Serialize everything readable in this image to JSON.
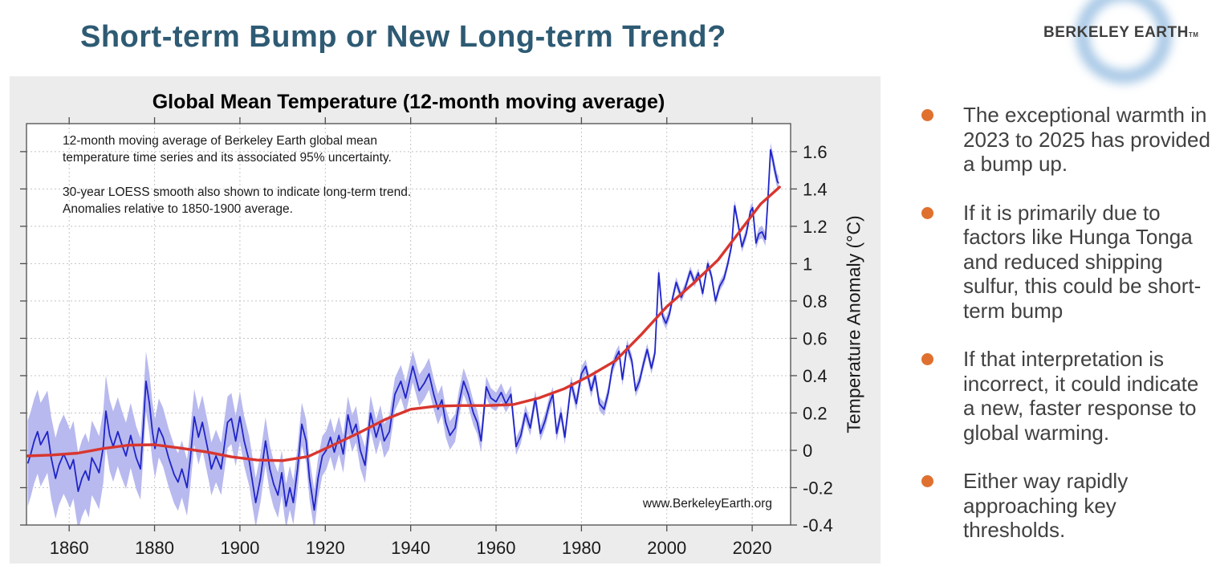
{
  "slide": {
    "title": "Short-term Bump or New Long-term Trend?",
    "title_color": "#2e5a73",
    "background": "#ffffff"
  },
  "logo": {
    "text": "BERKELEY EARTH",
    "tm": "TM",
    "ring_color": "#92bae0",
    "text_color": "#3f3f3f"
  },
  "bullets": {
    "marker_color": "#e0702f",
    "text_color": "#414141",
    "items": [
      "The exceptional warmth in 2023 to 2025 has provided a bump up.",
      "If it is primarily due to factors like Hunga Tonga and reduced shipping sulfur, this could be short-term bump",
      "If that interpretation is incorrect, it could indicate a new, faster response to global warming.",
      "Either way rapidly approaching key thresholds."
    ]
  },
  "chart_data": {
    "type": "line",
    "title": "Global Mean Temperature (12-month moving average)",
    "annotation_1": "12-month moving average of Berkeley Earth global mean\ntemperature time series and its associated 95% uncertainty.",
    "annotation_2": "30-year LOESS smooth also shown to indicate long-term trend.\nAnomalies relative to 1850-1900 average.",
    "watermark": "www.BerkeleyEarth.org",
    "xlabel": "",
    "ylabel": "Temperature Anomaly  (°C)",
    "xlim": [
      1850,
      2029
    ],
    "ylim": [
      -0.4,
      1.75
    ],
    "grid": "dashed, both axes",
    "legend_position": "none",
    "x_ticks": [
      1860,
      1880,
      1900,
      1920,
      1940,
      1960,
      1980,
      2000,
      2020
    ],
    "y_ticks": [
      {
        "v": 1.6,
        "label": "1.6"
      },
      {
        "v": 1.4,
        "label": "1.4"
      },
      {
        "v": 1.2,
        "label": "1.2"
      },
      {
        "v": 1.0,
        "label": "1"
      },
      {
        "v": 0.8,
        "label": "0.8"
      },
      {
        "v": 0.6,
        "label": "0.6"
      },
      {
        "v": 0.4,
        "label": "0.4"
      },
      {
        "v": 0.2,
        "label": "0.2"
      },
      {
        "v": 0.0,
        "label": "0"
      },
      {
        "v": -0.2,
        "label": "-0.2"
      },
      {
        "v": -0.4,
        "label": "-0.4"
      }
    ],
    "colors": {
      "card_background": "#ececec",
      "plot_background": "#ffffff",
      "axis": "#4d4d4d",
      "grid": "#c4c4c4",
      "moving_average": "#1f24c8",
      "uncertainty_band": "#b8b9ee",
      "loess_trend": "#d8362f",
      "tick_text": "#1a1a1a"
    },
    "series": [
      {
        "name": "12-month moving average (Berkeley Earth global mean)",
        "color": "#1f24c8",
        "points": [
          [
            1850.3,
            -0.07
          ],
          [
            1851,
            -0.02
          ],
          [
            1851.8,
            0.05
          ],
          [
            1852.6,
            0.1
          ],
          [
            1853.3,
            0.03
          ],
          [
            1854,
            0.06
          ],
          [
            1854.9,
            0.1
          ],
          [
            1855.8,
            -0.04
          ],
          [
            1856.8,
            -0.15
          ],
          [
            1857.6,
            -0.08
          ],
          [
            1858.7,
            -0.02
          ],
          [
            1859.5,
            -0.06
          ],
          [
            1860.2,
            -0.1
          ],
          [
            1861,
            -0.05
          ],
          [
            1862.1,
            -0.22
          ],
          [
            1863,
            -0.15
          ],
          [
            1863.8,
            -0.11
          ],
          [
            1864.6,
            -0.16
          ],
          [
            1865.3,
            -0.04
          ],
          [
            1866.2,
            -0.08
          ],
          [
            1867,
            -0.12
          ],
          [
            1868,
            0.02
          ],
          [
            1868.6,
            0.21
          ],
          [
            1869.5,
            0.08
          ],
          [
            1870.3,
            0.02
          ],
          [
            1871.4,
            0.1
          ],
          [
            1872.2,
            0.04
          ],
          [
            1873.3,
            -0.03
          ],
          [
            1874.4,
            0.08
          ],
          [
            1875.7,
            -0.04
          ],
          [
            1876.7,
            -0.1
          ],
          [
            1877.3,
            0.1
          ],
          [
            1878,
            0.37
          ],
          [
            1878.8,
            0.25
          ],
          [
            1879.5,
            0.1
          ],
          [
            1880.1,
            0.01
          ],
          [
            1881,
            0.12
          ],
          [
            1882,
            0.07
          ],
          [
            1883.3,
            -0.04
          ],
          [
            1884.6,
            -0.13
          ],
          [
            1885.5,
            -0.17
          ],
          [
            1886.4,
            -0.1
          ],
          [
            1887.6,
            -0.2
          ],
          [
            1888.4,
            -0.04
          ],
          [
            1889.3,
            0.18
          ],
          [
            1890.3,
            0.07
          ],
          [
            1891.2,
            0.15
          ],
          [
            1892.8,
            -0.03
          ],
          [
            1893.3,
            -0.1
          ],
          [
            1894.4,
            -0.03
          ],
          [
            1895.6,
            -0.1
          ],
          [
            1897.1,
            0.15
          ],
          [
            1898,
            0.17
          ],
          [
            1899,
            0.05
          ],
          [
            1900,
            0.18
          ],
          [
            1901,
            0.05
          ],
          [
            1902.2,
            -0.06
          ],
          [
            1903.7,
            -0.28
          ],
          [
            1904.8,
            -0.15
          ],
          [
            1906,
            0.05
          ],
          [
            1907,
            -0.1
          ],
          [
            1907.9,
            -0.18
          ],
          [
            1908.9,
            -0.24
          ],
          [
            1909.8,
            -0.12
          ],
          [
            1910.8,
            -0.3
          ],
          [
            1911.7,
            -0.2
          ],
          [
            1912.5,
            -0.28
          ],
          [
            1913.5,
            -0.1
          ],
          [
            1914.5,
            0.14
          ],
          [
            1915.5,
            0.05
          ],
          [
            1916.3,
            -0.15
          ],
          [
            1917.4,
            -0.32
          ],
          [
            1918.3,
            -0.15
          ],
          [
            1919.3,
            -0.03
          ],
          [
            1920.2,
            0
          ],
          [
            1921.2,
            0.07
          ],
          [
            1922.1,
            -0.01
          ],
          [
            1923.2,
            0.08
          ],
          [
            1924.2,
            -0.02
          ],
          [
            1925.3,
            0.19
          ],
          [
            1926.3,
            0.09
          ],
          [
            1927.2,
            0.14
          ],
          [
            1928.2,
            0
          ],
          [
            1929.3,
            -0.08
          ],
          [
            1930.6,
            0.2
          ],
          [
            1931.9,
            0.07
          ],
          [
            1932.9,
            0.15
          ],
          [
            1933.8,
            0.05
          ],
          [
            1935,
            0.1
          ],
          [
            1936.3,
            0.3
          ],
          [
            1937.7,
            0.37
          ],
          [
            1938.8,
            0.28
          ],
          [
            1940.5,
            0.45
          ],
          [
            1942,
            0.32
          ],
          [
            1943.2,
            0.36
          ],
          [
            1944.3,
            0.41
          ],
          [
            1945.4,
            0.3
          ],
          [
            1946.4,
            0.22
          ],
          [
            1947.3,
            0.27
          ],
          [
            1948.2,
            0.15
          ],
          [
            1949.2,
            0.08
          ],
          [
            1950.4,
            0.12
          ],
          [
            1951.3,
            0.25
          ],
          [
            1952.4,
            0.37
          ],
          [
            1953.5,
            0.3
          ],
          [
            1954.7,
            0.2
          ],
          [
            1955.6,
            0.15
          ],
          [
            1956.5,
            0.05
          ],
          [
            1957.7,
            0.34
          ],
          [
            1958.8,
            0.28
          ],
          [
            1960,
            0.26
          ],
          [
            1961.2,
            0.31
          ],
          [
            1962.3,
            0.25
          ],
          [
            1963.5,
            0.3
          ],
          [
            1964.7,
            0.02
          ],
          [
            1965.8,
            0.08
          ],
          [
            1966.9,
            0.2
          ],
          [
            1968,
            0.12
          ],
          [
            1969.2,
            0.28
          ],
          [
            1970.4,
            0.09
          ],
          [
            1971.5,
            0.16
          ],
          [
            1972.5,
            0.25
          ],
          [
            1973.3,
            0.3
          ],
          [
            1974.2,
            0.09
          ],
          [
            1975.2,
            0.2
          ],
          [
            1976.1,
            0.07
          ],
          [
            1977.6,
            0.36
          ],
          [
            1978.8,
            0.25
          ],
          [
            1980,
            0.41
          ],
          [
            1981,
            0.45
          ],
          [
            1982.3,
            0.32
          ],
          [
            1983.2,
            0.4
          ],
          [
            1984.2,
            0.25
          ],
          [
            1985.3,
            0.22
          ],
          [
            1986.3,
            0.31
          ],
          [
            1987.2,
            0.44
          ],
          [
            1988.1,
            0.5
          ],
          [
            1988.8,
            0.53
          ],
          [
            1989.6,
            0.38
          ],
          [
            1990.7,
            0.56
          ],
          [
            1991.8,
            0.48
          ],
          [
            1992.7,
            0.32
          ],
          [
            1993.6,
            0.37
          ],
          [
            1994.5,
            0.46
          ],
          [
            1995.4,
            0.54
          ],
          [
            1996.4,
            0.44
          ],
          [
            1997.2,
            0.52
          ],
          [
            1998.1,
            0.95
          ],
          [
            1999,
            0.72
          ],
          [
            1999.8,
            0.68
          ],
          [
            2000.6,
            0.73
          ],
          [
            2001.4,
            0.82
          ],
          [
            2002.2,
            0.9
          ],
          [
            2003.4,
            0.82
          ],
          [
            2004.3,
            0.87
          ],
          [
            2005.5,
            0.96
          ],
          [
            2006.5,
            0.9
          ],
          [
            2007.4,
            0.95
          ],
          [
            2008.4,
            0.84
          ],
          [
            2009.6,
            1.0
          ],
          [
            2010.5,
            0.93
          ],
          [
            2011.4,
            0.8
          ],
          [
            2012.4,
            0.88
          ],
          [
            2013.4,
            0.92
          ],
          [
            2014.3,
            1.0
          ],
          [
            2015.2,
            1.1
          ],
          [
            2015.9,
            1.31
          ],
          [
            2016.8,
            1.2
          ],
          [
            2017.6,
            1.09
          ],
          [
            2018.6,
            1.16
          ],
          [
            2019.6,
            1.28
          ],
          [
            2020.1,
            1.3
          ],
          [
            2020.9,
            1.11
          ],
          [
            2021.6,
            1.16
          ],
          [
            2022.3,
            1.17
          ],
          [
            2023.1,
            1.13
          ],
          [
            2023.7,
            1.35
          ],
          [
            2024.3,
            1.61
          ],
          [
            2024.8,
            1.56
          ],
          [
            2025.3,
            1.5
          ],
          [
            2025.9,
            1.44
          ],
          [
            2026.2,
            1.43
          ]
        ]
      },
      {
        "name": "30-year LOESS smooth",
        "color": "#d8362f",
        "points": [
          [
            1850,
            -0.03
          ],
          [
            1856,
            -0.025
          ],
          [
            1862,
            -0.015
          ],
          [
            1868,
            0.01
          ],
          [
            1874,
            0.028
          ],
          [
            1880,
            0.03
          ],
          [
            1886,
            0.012
          ],
          [
            1892,
            -0.008
          ],
          [
            1898,
            -0.035
          ],
          [
            1904,
            -0.052
          ],
          [
            1910,
            -0.055
          ],
          [
            1916,
            -0.033
          ],
          [
            1922,
            0.03
          ],
          [
            1928,
            0.095
          ],
          [
            1934,
            0.165
          ],
          [
            1940,
            0.22
          ],
          [
            1946,
            0.237
          ],
          [
            1952,
            0.24
          ],
          [
            1958,
            0.24
          ],
          [
            1964,
            0.245
          ],
          [
            1970,
            0.28
          ],
          [
            1976,
            0.33
          ],
          [
            1982,
            0.4
          ],
          [
            1988,
            0.48
          ],
          [
            1994,
            0.62
          ],
          [
            2000,
            0.77
          ],
          [
            2006,
            0.89
          ],
          [
            2012,
            1.02
          ],
          [
            2018,
            1.2
          ],
          [
            2022,
            1.32
          ],
          [
            2026.4,
            1.41
          ]
        ]
      }
    ],
    "band": {
      "name": "95% uncertainty band around moving average",
      "color": "#b8b9ee",
      "half_width_breakpoints": [
        [
          1850,
          0.23
        ],
        [
          1860,
          0.21
        ],
        [
          1870,
          0.19
        ],
        [
          1878,
          0.16
        ],
        [
          1885,
          0.155
        ],
        [
          1895,
          0.14
        ],
        [
          1900,
          0.135
        ],
        [
          1905,
          0.13
        ],
        [
          1910,
          0.12
        ],
        [
          1915,
          0.115
        ],
        [
          1920,
          0.105
        ],
        [
          1925,
          0.1
        ],
        [
          1930,
          0.095
        ],
        [
          1935,
          0.09
        ],
        [
          1940,
          0.085
        ],
        [
          1945,
          0.085
        ],
        [
          1950,
          0.075
        ],
        [
          1955,
          0.065
        ],
        [
          1960,
          0.05
        ],
        [
          1965,
          0.045
        ],
        [
          1970,
          0.04
        ],
        [
          1975,
          0.04
        ],
        [
          1980,
          0.038
        ],
        [
          1985,
          0.036
        ],
        [
          1990,
          0.034
        ],
        [
          1995,
          0.032
        ],
        [
          2000,
          0.03
        ],
        [
          2005,
          0.026
        ],
        [
          2010,
          0.025
        ],
        [
          2015,
          0.028
        ],
        [
          2020,
          0.03
        ],
        [
          2026.2,
          0.04
        ]
      ]
    }
  }
}
